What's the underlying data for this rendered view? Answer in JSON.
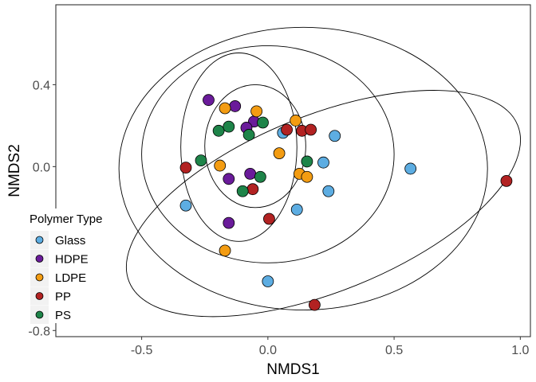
{
  "chart_data": {
    "type": "scatter",
    "xlabel": "NMDS1",
    "ylabel": "NMDS2",
    "xlim": [
      -0.84,
      1.04
    ],
    "ylim": [
      -0.83,
      0.79
    ],
    "x_ticks": [
      -0.5,
      0.0,
      0.5,
      1.0
    ],
    "x_tick_labels": [
      "-0.5",
      "0.0",
      "0.5",
      "1.0"
    ],
    "y_ticks": [
      -0.8,
      -0.4,
      0.0,
      0.4
    ],
    "y_tick_labels": [
      "-0.8",
      "-0.4",
      "0.0",
      "0.4"
    ],
    "grid": false,
    "legend": {
      "title": "Polymer Type",
      "placement": "bottom-left",
      "entries": [
        "Glass",
        "HDPE",
        "LDPE",
        "PP",
        "PS"
      ]
    },
    "colors": {
      "Glass": "#5DADE2",
      "HDPE": "#6A1B9A",
      "LDPE": "#F39C12",
      "PP": "#B22222",
      "PS": "#1E8449"
    },
    "series": [
      {
        "name": "Glass",
        "points": [
          [
            0.06,
            0.165
          ],
          [
            0.265,
            0.15
          ],
          [
            0.22,
            0.02
          ],
          [
            0.565,
            -0.01
          ],
          [
            0.24,
            -0.12
          ],
          [
            0.115,
            -0.21
          ],
          [
            -0.325,
            -0.19
          ],
          [
            0.0,
            -0.56
          ]
        ]
      },
      {
        "name": "HDPE",
        "points": [
          [
            -0.235,
            0.325
          ],
          [
            -0.13,
            0.295
          ],
          [
            -0.055,
            0.22
          ],
          [
            -0.085,
            0.19
          ],
          [
            -0.07,
            -0.035
          ],
          [
            -0.155,
            -0.06
          ],
          [
            -0.155,
            -0.275
          ]
        ]
      },
      {
        "name": "LDPE",
        "points": [
          [
            -0.17,
            0.285
          ],
          [
            -0.045,
            0.27
          ],
          [
            0.11,
            0.225
          ],
          [
            0.045,
            0.065
          ],
          [
            -0.19,
            0.005
          ],
          [
            0.125,
            -0.035
          ],
          [
            0.155,
            -0.05
          ],
          [
            -0.17,
            -0.41
          ]
        ]
      },
      {
        "name": "PP",
        "points": [
          [
            0.075,
            0.18
          ],
          [
            0.135,
            0.175
          ],
          [
            0.17,
            0.18
          ],
          [
            -0.325,
            -0.005
          ],
          [
            -0.06,
            -0.11
          ],
          [
            0.005,
            -0.255
          ],
          [
            0.185,
            -0.675
          ],
          [
            0.945,
            -0.07
          ]
        ]
      },
      {
        "name": "PS",
        "points": [
          [
            -0.195,
            0.175
          ],
          [
            -0.155,
            0.195
          ],
          [
            -0.075,
            0.155
          ],
          [
            -0.02,
            0.215
          ],
          [
            -0.265,
            0.03
          ],
          [
            0.155,
            0.025
          ],
          [
            -0.03,
            -0.05
          ],
          [
            -0.1,
            -0.12
          ]
        ]
      }
    ],
    "ellipses": [
      {
        "name": "Glass",
        "center": [
          0.14,
          -0.01
        ],
        "semi_axes": [
          0.73,
          0.69
        ],
        "angle": 0
      },
      {
        "name": "HDPE",
        "center": [
          -0.115,
          0.095
        ],
        "semi_axes": [
          0.23,
          0.46
        ],
        "angle": 0
      },
      {
        "name": "LDPE",
        "center": [
          0.0,
          0.06
        ],
        "semi_axes": [
          0.5,
          0.53
        ],
        "angle": 0
      },
      {
        "name": "PP",
        "center": [
          0.22,
          -0.18
        ],
        "semi_axes": [
          0.83,
          0.43
        ],
        "angle": 22
      },
      {
        "name": "PS",
        "center": [
          -0.05,
          0.1
        ],
        "semi_axes": [
          0.2,
          0.3
        ],
        "angle": 0
      }
    ]
  }
}
